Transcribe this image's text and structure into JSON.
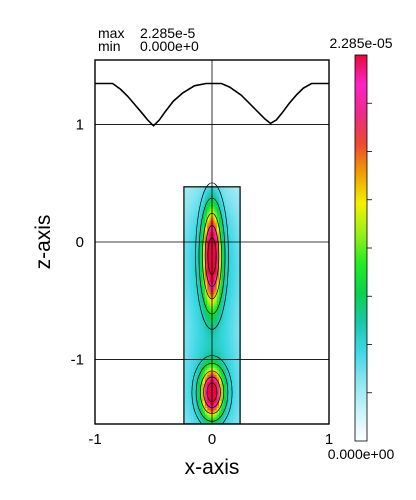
{
  "stats": {
    "max_label": "max",
    "max_value": "2.285e-5",
    "min_label": "min",
    "min_value": "0.000e+0"
  },
  "colorbar": {
    "top_label": "2.285e-05",
    "bottom_label": "0.000e+00",
    "colors": [
      "#ffffff",
      "#c8f4fa",
      "#8ee6f0",
      "#3ed8e6",
      "#18c8a8",
      "#0ad24c",
      "#22ee22",
      "#9cf014",
      "#f2f200",
      "#f0a000",
      "#ee4a30",
      "#ee2a86",
      "#ff22c6",
      "#e80a3c"
    ],
    "ticks": 8
  },
  "chart_data": {
    "type": "heatmap",
    "xlabel": "x-axis",
    "ylabel": "z-axis",
    "xlim": [
      -1,
      1
    ],
    "ylim": [
      -1.55,
      1.55
    ],
    "x_ticks": [
      -1,
      0,
      1
    ],
    "x_tick_labels": [
      "-1",
      "0",
      "1"
    ],
    "y_ticks": [
      -1,
      0,
      1
    ],
    "y_tick_labels": [
      "-1",
      "0",
      "1"
    ],
    "grid": true,
    "value_range": [
      0,
      2.285e-05
    ],
    "region": {
      "x": [
        -0.24,
        0.24
      ],
      "z": [
        -1.55,
        0.47
      ]
    },
    "top_curve": {
      "x": [
        -1.0,
        -0.85,
        -0.78,
        -0.72,
        -0.66,
        -0.6,
        -0.55,
        -0.5,
        -0.45,
        -0.4,
        -0.33,
        -0.25,
        -0.15,
        -0.05,
        0.0,
        0.08,
        0.15,
        0.25,
        0.33,
        0.4,
        0.45,
        0.5,
        0.55,
        0.6,
        0.66,
        0.72,
        0.78,
        0.85,
        1.0
      ],
      "z": [
        1.35,
        1.35,
        1.3,
        1.24,
        1.17,
        1.1,
        1.04,
        0.99,
        1.04,
        1.11,
        1.2,
        1.27,
        1.33,
        1.35,
        1.35,
        1.35,
        1.32,
        1.25,
        1.17,
        1.1,
        1.05,
        1.01,
        1.04,
        1.1,
        1.18,
        1.25,
        1.31,
        1.35,
        1.35
      ]
    },
    "hotspots": [
      {
        "x": 0.0,
        "z": -0.12,
        "sx": 0.045,
        "sz": 0.26,
        "value": 2.285e-05
      },
      {
        "x": 0.0,
        "z": -1.28,
        "sx": 0.055,
        "sz": 0.13,
        "value": 2.2e-05
      }
    ]
  }
}
